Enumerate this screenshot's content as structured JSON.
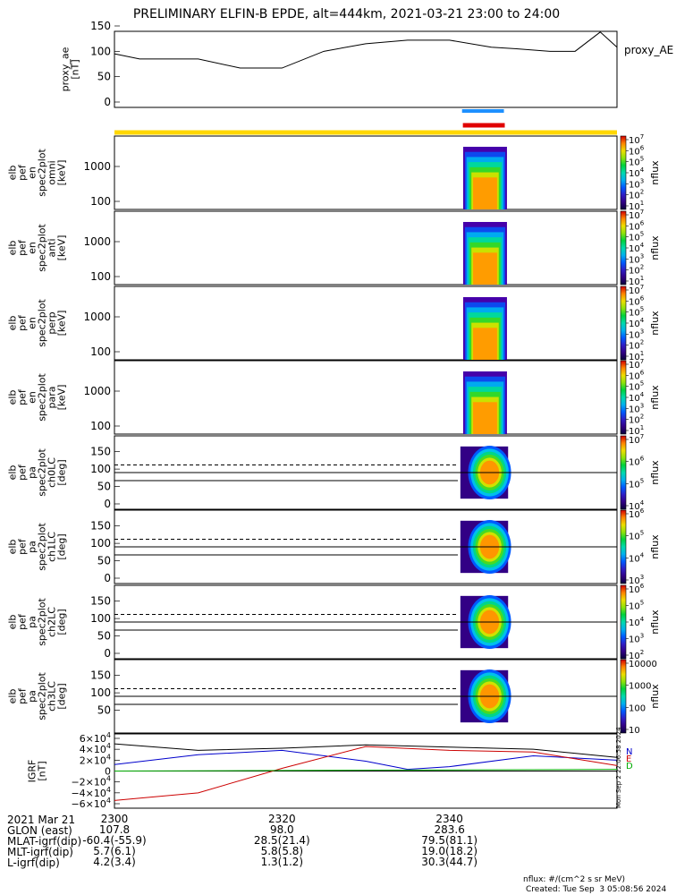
{
  "title": "PRELIMINARY ELFIN-B EPDE, alt=444km, 2021-03-21 23:00 to 24:00",
  "ae_panel": {
    "ylabel": "proxy_ae\n[nT]",
    "yticks": [
      "150",
      "100",
      "50",
      "0"
    ],
    "legend": "proxy_AE"
  },
  "spec_panels": [
    {
      "ylabel": [
        "elb",
        "pef",
        "en",
        "spec2plot",
        "omni",
        "[keV]"
      ],
      "yticks": [
        "1000",
        "100"
      ],
      "cb_label": "nflux",
      "cb_ticks": [
        "10^7",
        "10^6",
        "10^5",
        "10^4",
        "10^3",
        "10^2",
        "10^1"
      ]
    },
    {
      "ylabel": [
        "elb",
        "pef",
        "en",
        "spec2plot",
        "anti",
        "[keV]"
      ],
      "yticks": [
        "1000",
        "100"
      ],
      "cb_label": "nflux",
      "cb_ticks": [
        "10^7",
        "10^6",
        "10^5",
        "10^4",
        "10^3",
        "10^2",
        "10^1"
      ]
    },
    {
      "ylabel": [
        "elb",
        "pef",
        "en",
        "spec2plot",
        "perp",
        "[keV]"
      ],
      "yticks": [
        "1000",
        "100"
      ],
      "cb_label": "nflux",
      "cb_ticks": [
        "10^7",
        "10^6",
        "10^5",
        "10^4",
        "10^3",
        "10^2",
        "10^1"
      ]
    },
    {
      "ylabel": [
        "elb",
        "pef",
        "en",
        "spec2plot",
        "para",
        "[keV]"
      ],
      "yticks": [
        "1000",
        "100"
      ],
      "cb_label": "nflux",
      "cb_ticks": [
        "10^7",
        "10^6",
        "10^5",
        "10^4",
        "10^3",
        "10^2",
        "10^1"
      ]
    }
  ],
  "pa_panels": [
    {
      "ylabel": [
        "elb",
        "pef",
        "pa",
        "spec2plot",
        "ch0LC",
        "[deg]"
      ],
      "yticks": [
        "150",
        "100",
        "50",
        "0"
      ],
      "cb_label": "nflux",
      "cb_ticks": [
        "10^7",
        "10^6",
        "10^5",
        "10^4"
      ]
    },
    {
      "ylabel": [
        "elb",
        "pef",
        "pa",
        "spec2plot",
        "ch1LC",
        "[deg]"
      ],
      "yticks": [
        "150",
        "100",
        "50",
        "0"
      ],
      "cb_label": "nflux",
      "cb_ticks": [
        "10^6",
        "10^5",
        "10^4",
        "10^3"
      ]
    },
    {
      "ylabel": [
        "elb",
        "pef",
        "pa",
        "spec2plot",
        "ch2LC",
        "[deg]"
      ],
      "yticks": [
        "150",
        "100",
        "50",
        "0"
      ],
      "cb_label": "nflux",
      "cb_ticks": [
        "10^6",
        "10^5",
        "10^4",
        "10^3",
        "10^2"
      ]
    },
    {
      "ylabel": [
        "elb",
        "pef",
        "pa",
        "spec2plot",
        "ch3LC",
        "[deg]"
      ],
      "yticks": [
        "150",
        "100",
        "50"
      ],
      "cb_label": "nflux",
      "cb_ticks": [
        "10000",
        "1000",
        "100",
        "10"
      ]
    }
  ],
  "igrf_panel": {
    "ylabel": "IGRF\n[nT]",
    "yticks": [
      "6×10^4",
      "4×10^4",
      "2×10^4",
      "0",
      "−2×10^4",
      "−4×10^4",
      "−6×10^4"
    ],
    "legend": [
      "N",
      "E",
      "D"
    ]
  },
  "side_stamp": "Mon Sep  2 22:06:58 2024",
  "x_header": "2021 Mar 21",
  "x_ticks": [
    "2300",
    "2320",
    "2340"
  ],
  "orbit_rows": [
    {
      "label": "GLON (east)",
      "values": [
        "107.8",
        "98.0",
        "283.6"
      ]
    },
    {
      "label": "MLAT-igrf(dip)",
      "values": [
        "-60.4(-55.9)",
        "28.5(21.4)",
        "79.5(81.1)"
      ]
    },
    {
      "label": "MLT-igrf(dip)",
      "values": [
        "5.7(6.1)",
        "5.8(5.8)",
        "19.0(18.2)"
      ]
    },
    {
      "label": "L-igrf(dip)",
      "values": [
        "4.2(3.4)",
        "1.3(1.2)",
        "30.3(44.7)"
      ]
    }
  ],
  "footer_units": "nflux: #/(cm^2 s sr MeV)",
  "footer_created": "Created: Tue Sep  3 05:08:56 2024",
  "chart_data": {
    "type": "line",
    "x_unit": "minutes from 2300 UT",
    "ae_series": {
      "x": [
        0,
        3,
        6,
        10,
        15,
        20,
        25,
        30,
        35,
        40,
        45,
        48,
        52,
        55,
        58,
        60
      ],
      "y": [
        95,
        85,
        85,
        85,
        67,
        67,
        100,
        115,
        122,
        122,
        108,
        105,
        100,
        100,
        138,
        108
      ]
    },
    "bars": [
      {
        "color": "#1e90ff",
        "x": [
          41.5,
          46.5
        ]
      },
      {
        "color": "#e00000",
        "x": [
          41.6,
          46.6
        ]
      },
      {
        "color": "#ffd700",
        "x": [
          0,
          60
        ]
      }
    ],
    "spectrogram_extent": {
      "x": [
        41.5,
        47.0
      ]
    },
    "igrf_series": [
      {
        "name": "N",
        "color": "#000000",
        "x": [
          0,
          10,
          20,
          30,
          40,
          50,
          60
        ],
        "y": [
          50000,
          38000,
          42000,
          48000,
          44000,
          40000,
          25000
        ]
      },
      {
        "name": "E",
        "color": "#0000cc",
        "x": [
          0,
          10,
          20,
          30,
          35,
          40,
          50,
          60
        ],
        "y": [
          12000,
          30000,
          38000,
          18000,
          3000,
          8000,
          28000,
          20000
        ]
      },
      {
        "name": "D",
        "color": "#cc0000",
        "x": [
          0,
          10,
          20,
          30,
          40,
          50,
          60
        ],
        "y": [
          -54000,
          -40000,
          5000,
          45000,
          38000,
          35000,
          10000
        ]
      },
      {
        "name": "",
        "color": "#00aa00",
        "x": [
          0,
          20,
          40,
          60
        ],
        "y": [
          0,
          1000,
          2000,
          3000
        ]
      }
    ],
    "igrf_ylim": [
      -60000,
      60000
    ],
    "ae_ylim": [
      0,
      150
    ]
  }
}
